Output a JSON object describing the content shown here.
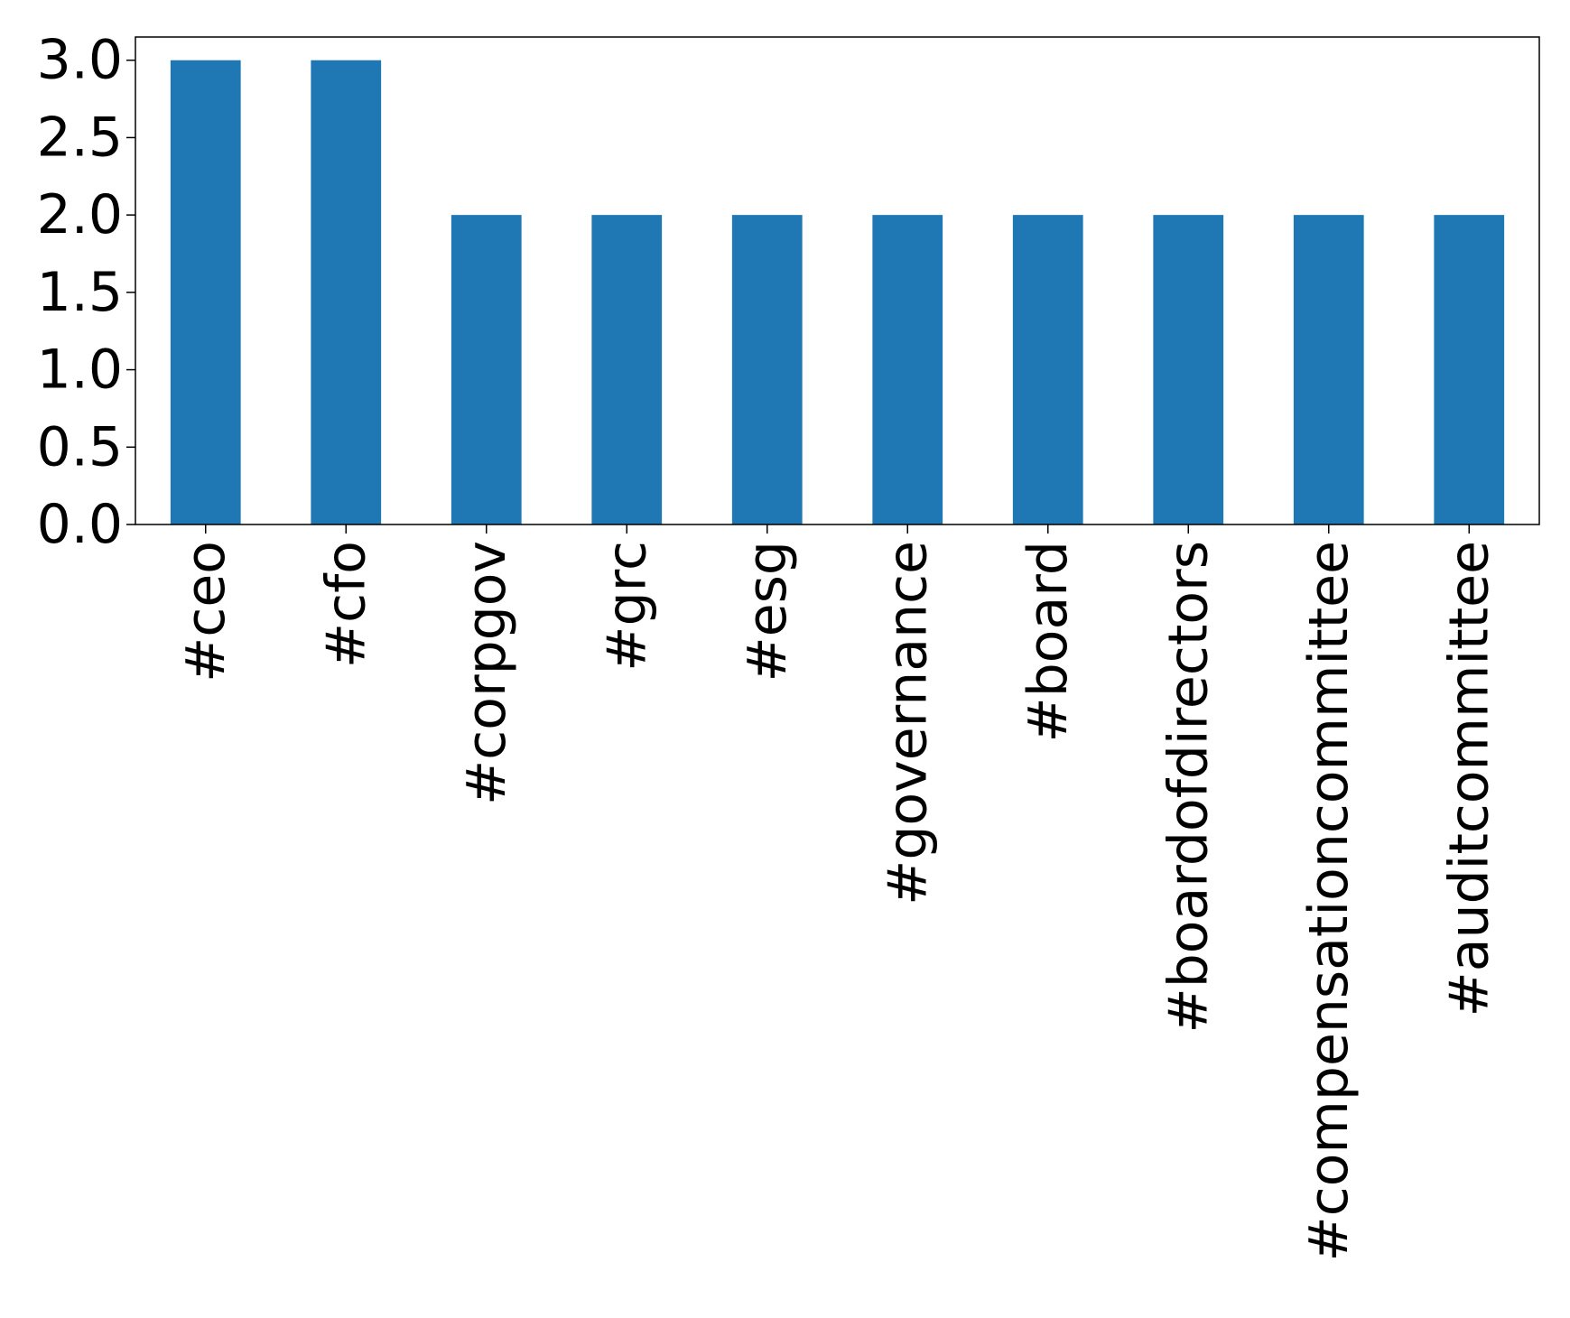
{
  "chart_data": {
    "type": "bar",
    "categories": [
      "#ceo",
      "#cfo",
      "#corpgov",
      "#grc",
      "#esg",
      "#governance",
      "#board",
      "#boardofdirectors",
      "#compensationcommittee",
      "#auditcommittee"
    ],
    "values": [
      3,
      3,
      2,
      2,
      2,
      2,
      2,
      2,
      2,
      2
    ],
    "yticks": [
      "0.0",
      "0.5",
      "1.0",
      "1.5",
      "2.0",
      "2.5",
      "3.0"
    ],
    "ylim": [
      0,
      3.15
    ],
    "grid": false,
    "bar_color": "#1f77b4"
  }
}
